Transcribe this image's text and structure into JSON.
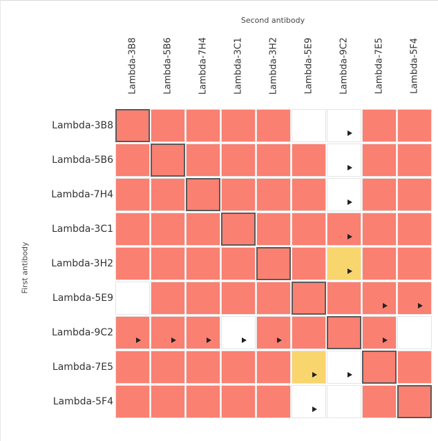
{
  "chart_data": {
    "type": "heatmap",
    "xlabel": "Second antibody",
    "ylabel": "First antibody",
    "columns": [
      "Lambda-3B8",
      "Lambda-5B6",
      "Lambda-7H4",
      "Lambda-3C1",
      "Lambda-3H2",
      "Lambda-5E9",
      "Lambda-9C2",
      "Lambda-7E5",
      "Lambda-5F4"
    ],
    "rows": [
      "Lambda-3B8",
      "Lambda-5B6",
      "Lambda-7H4",
      "Lambda-3C1",
      "Lambda-3H2",
      "Lambda-5E9",
      "Lambda-9C2",
      "Lambda-7E5",
      "Lambda-5F4"
    ],
    "legend": {
      "R": {
        "color": "#fa8072"
      },
      "W": {
        "color": "#ffffff"
      },
      "Y": {
        "color": "#f9d56e"
      }
    },
    "cells": [
      [
        "R",
        "R",
        "R",
        "R",
        "R",
        "W",
        "W",
        "R",
        "R"
      ],
      [
        "R",
        "R",
        "R",
        "R",
        "R",
        "R",
        "W",
        "R",
        "R"
      ],
      [
        "R",
        "R",
        "R",
        "R",
        "R",
        "R",
        "W",
        "R",
        "R"
      ],
      [
        "R",
        "R",
        "R",
        "R",
        "R",
        "R",
        "R",
        "R",
        "R"
      ],
      [
        "R",
        "R",
        "R",
        "R",
        "R",
        "R",
        "Y",
        "R",
        "R"
      ],
      [
        "W",
        "R",
        "R",
        "R",
        "R",
        "R",
        "R",
        "R",
        "R"
      ],
      [
        "R",
        "R",
        "R",
        "W",
        "R",
        "R",
        "R",
        "R",
        "W"
      ],
      [
        "R",
        "R",
        "R",
        "R",
        "R",
        "Y",
        "W",
        "R",
        "R"
      ],
      [
        "R",
        "R",
        "R",
        "R",
        "R",
        "W",
        "W",
        "R",
        "R"
      ]
    ],
    "arrows": [
      [
        false,
        false,
        false,
        false,
        false,
        false,
        true,
        false,
        false
      ],
      [
        false,
        false,
        false,
        false,
        false,
        false,
        true,
        false,
        false
      ],
      [
        false,
        false,
        false,
        false,
        false,
        false,
        true,
        false,
        false
      ],
      [
        false,
        false,
        false,
        false,
        false,
        false,
        true,
        false,
        false
      ],
      [
        false,
        false,
        false,
        false,
        false,
        false,
        true,
        false,
        false
      ],
      [
        false,
        false,
        false,
        false,
        false,
        false,
        false,
        true,
        true
      ],
      [
        true,
        true,
        true,
        true,
        true,
        false,
        false,
        true,
        false
      ],
      [
        false,
        false,
        false,
        false,
        false,
        true,
        true,
        false,
        false
      ],
      [
        false,
        false,
        false,
        false,
        false,
        true,
        false,
        false,
        false
      ]
    ],
    "diagonal_outlined": true
  }
}
